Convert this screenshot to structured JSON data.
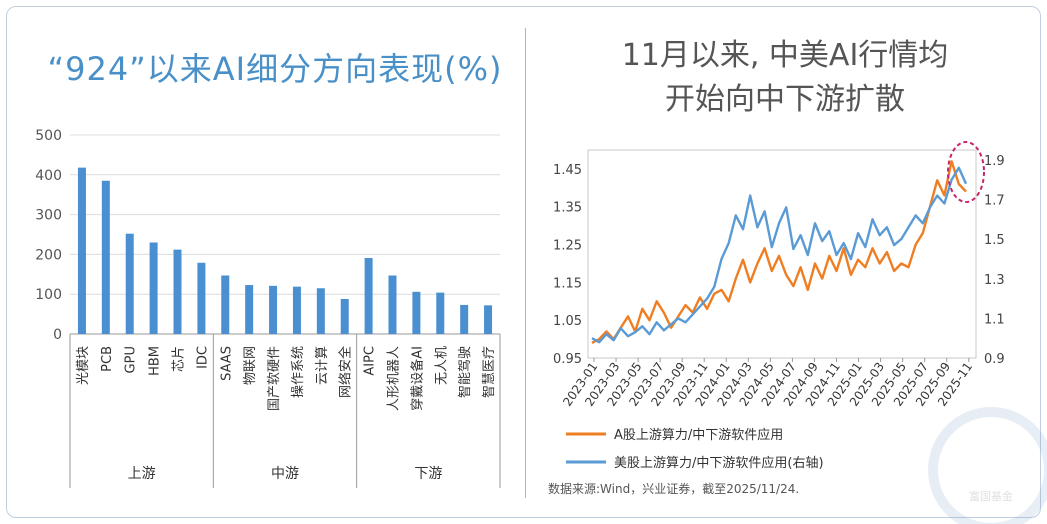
{
  "left_chart": {
    "title": "“924”以来AI细分方向表现(%)",
    "chart_data": {
      "type": "bar",
      "ylim": [
        0,
        500
      ],
      "yticks": [
        0,
        100,
        200,
        300,
        400,
        500
      ],
      "categories": [
        "光模块",
        "PCB",
        "GPU",
        "HBM",
        "芯片",
        "IDC",
        "SAAS",
        "物联网",
        "国产软硬件",
        "操作系统",
        "云计算",
        "网络安全",
        "AIPC",
        "人形机器人",
        "穿戴设备AI",
        "无人机",
        "智能驾驶",
        "智慧医疗"
      ],
      "values": [
        418,
        385,
        252,
        230,
        212,
        179,
        147,
        123,
        121,
        119,
        115,
        88,
        191,
        147,
        106,
        104,
        73,
        72
      ],
      "bar_color": "#4a90d0",
      "groups": [
        {
          "label": "上游",
          "start": 0,
          "end": 5
        },
        {
          "label": "中游",
          "start": 6,
          "end": 11
        },
        {
          "label": "下游",
          "start": 12,
          "end": 17
        }
      ]
    }
  },
  "right_chart": {
    "title_line1": "11月以来, 中美AI行情均",
    "title_line2": "开始向中下游扩散",
    "chart_data": {
      "type": "line",
      "x_labels": [
        "2023-01",
        "2023-03",
        "2023-05",
        "2023-07",
        "2023-09",
        "2023-11",
        "2024-01",
        "2024-03",
        "2024-05",
        "2024-07",
        "2024-09",
        "2024-11",
        "2025-01",
        "2025-03",
        "2025-05",
        "2025-07",
        "2025-09",
        "2025-11"
      ],
      "ylim_left": [
        0.95,
        1.5
      ],
      "yticks_left": [
        0.95,
        1.05,
        1.15,
        1.25,
        1.35,
        1.45
      ],
      "ylim_right": [
        0.9,
        1.95
      ],
      "yticks_right": [
        0.9,
        1.1,
        1.3,
        1.5,
        1.7,
        1.9
      ],
      "series": [
        {
          "name": "A股上游算力/中下游软件应用",
          "axis": "left",
          "color": "#ef7d22",
          "values": [
            0.99,
            1.0,
            1.02,
            1.0,
            1.03,
            1.06,
            1.02,
            1.08,
            1.05,
            1.1,
            1.07,
            1.03,
            1.06,
            1.09,
            1.07,
            1.11,
            1.08,
            1.12,
            1.13,
            1.1,
            1.16,
            1.21,
            1.15,
            1.2,
            1.24,
            1.18,
            1.22,
            1.17,
            1.14,
            1.19,
            1.13,
            1.2,
            1.16,
            1.22,
            1.18,
            1.24,
            1.17,
            1.21,
            1.19,
            1.24,
            1.2,
            1.23,
            1.18,
            1.2,
            1.19,
            1.25,
            1.28,
            1.35,
            1.42,
            1.38,
            1.47,
            1.41,
            1.39
          ]
        },
        {
          "name": "美股上游算力/中下游软件应用(右轴)",
          "axis": "right",
          "color": "#5a9bd5",
          "values": [
            1.0,
            0.98,
            1.02,
            0.99,
            1.05,
            1.01,
            1.03,
            1.06,
            1.02,
            1.08,
            1.04,
            1.07,
            1.1,
            1.08,
            1.12,
            1.16,
            1.2,
            1.26,
            1.4,
            1.48,
            1.62,
            1.55,
            1.72,
            1.56,
            1.64,
            1.46,
            1.58,
            1.66,
            1.45,
            1.52,
            1.42,
            1.58,
            1.49,
            1.54,
            1.42,
            1.48,
            1.4,
            1.53,
            1.46,
            1.6,
            1.52,
            1.56,
            1.47,
            1.5,
            1.56,
            1.62,
            1.58,
            1.66,
            1.72,
            1.68,
            1.8,
            1.86,
            1.78
          ]
        }
      ]
    }
  },
  "source_note": "数据来源:Wind，兴业证券，截至2025/11/24.",
  "watermark": "富国基金"
}
